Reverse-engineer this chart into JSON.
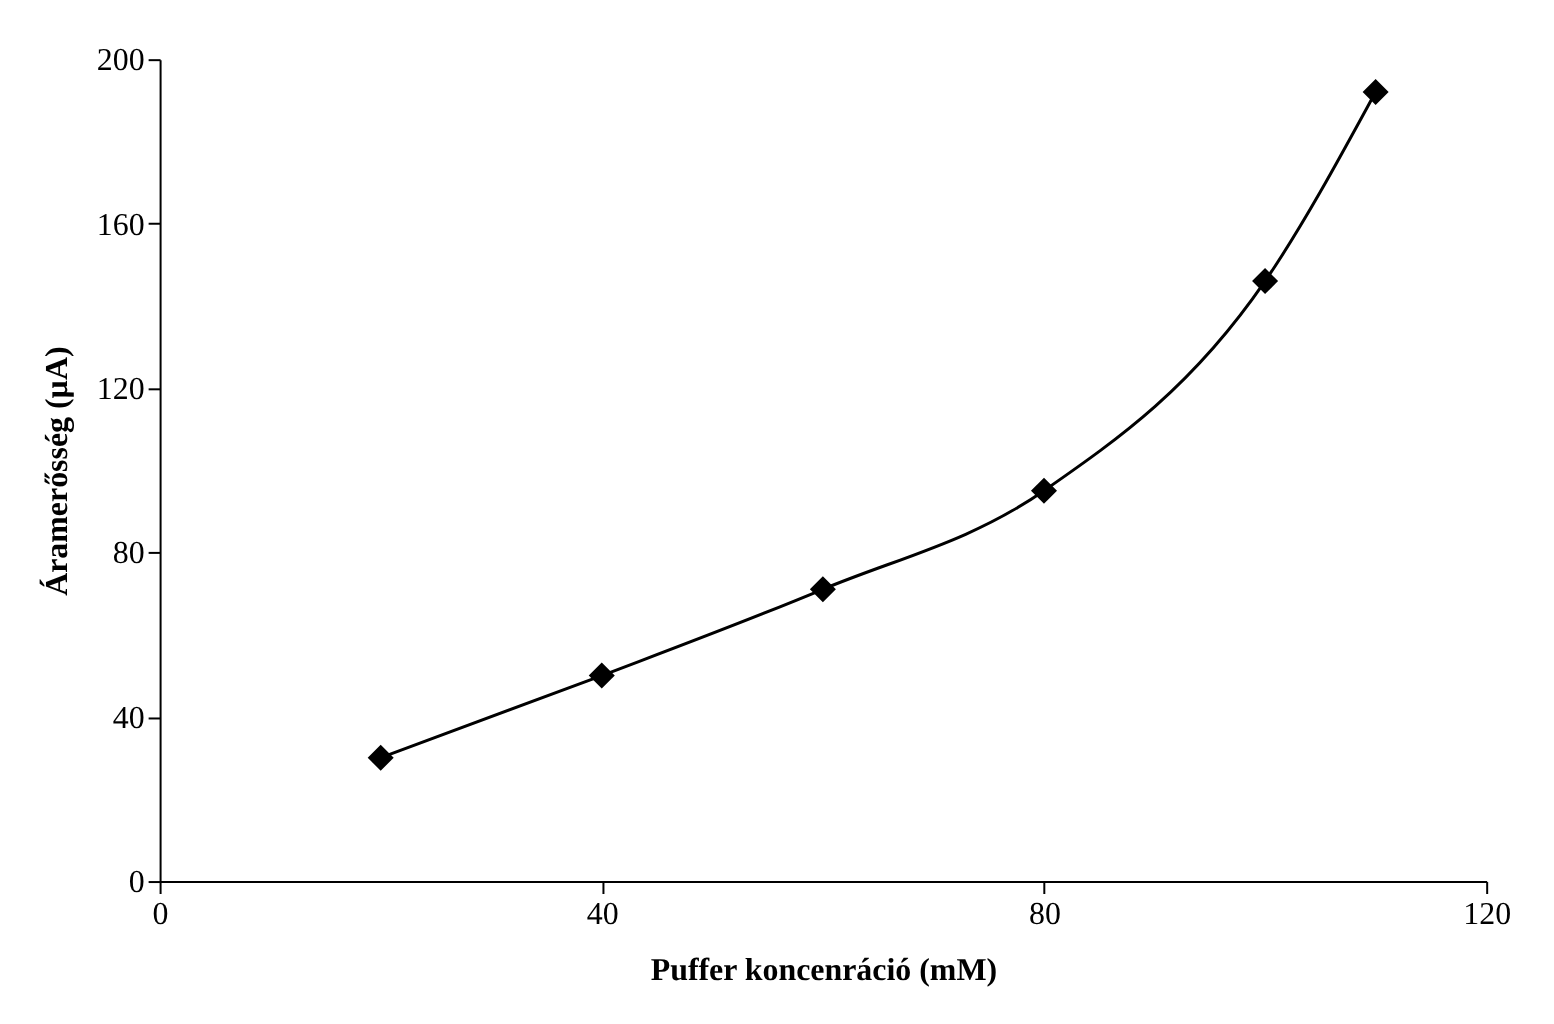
{
  "chart_data": {
    "type": "line",
    "xlabel": "Puffer koncenráció (mM)",
    "ylabel": "Áramerősség (µA)",
    "x": [
      20,
      40,
      60,
      80,
      100,
      110
    ],
    "series": [
      {
        "color": "#000000",
        "values": [
          30,
          50,
          71,
          95,
          146,
          192
        ]
      }
    ],
    "xlim": [
      0,
      120
    ],
    "xticks": [
      0,
      40,
      80,
      120
    ],
    "ylim": [
      0,
      200
    ],
    "yticks": [
      0,
      40,
      80,
      120,
      160,
      200
    ],
    "marker": "diamond",
    "line_style": "solid",
    "grid": false
  }
}
